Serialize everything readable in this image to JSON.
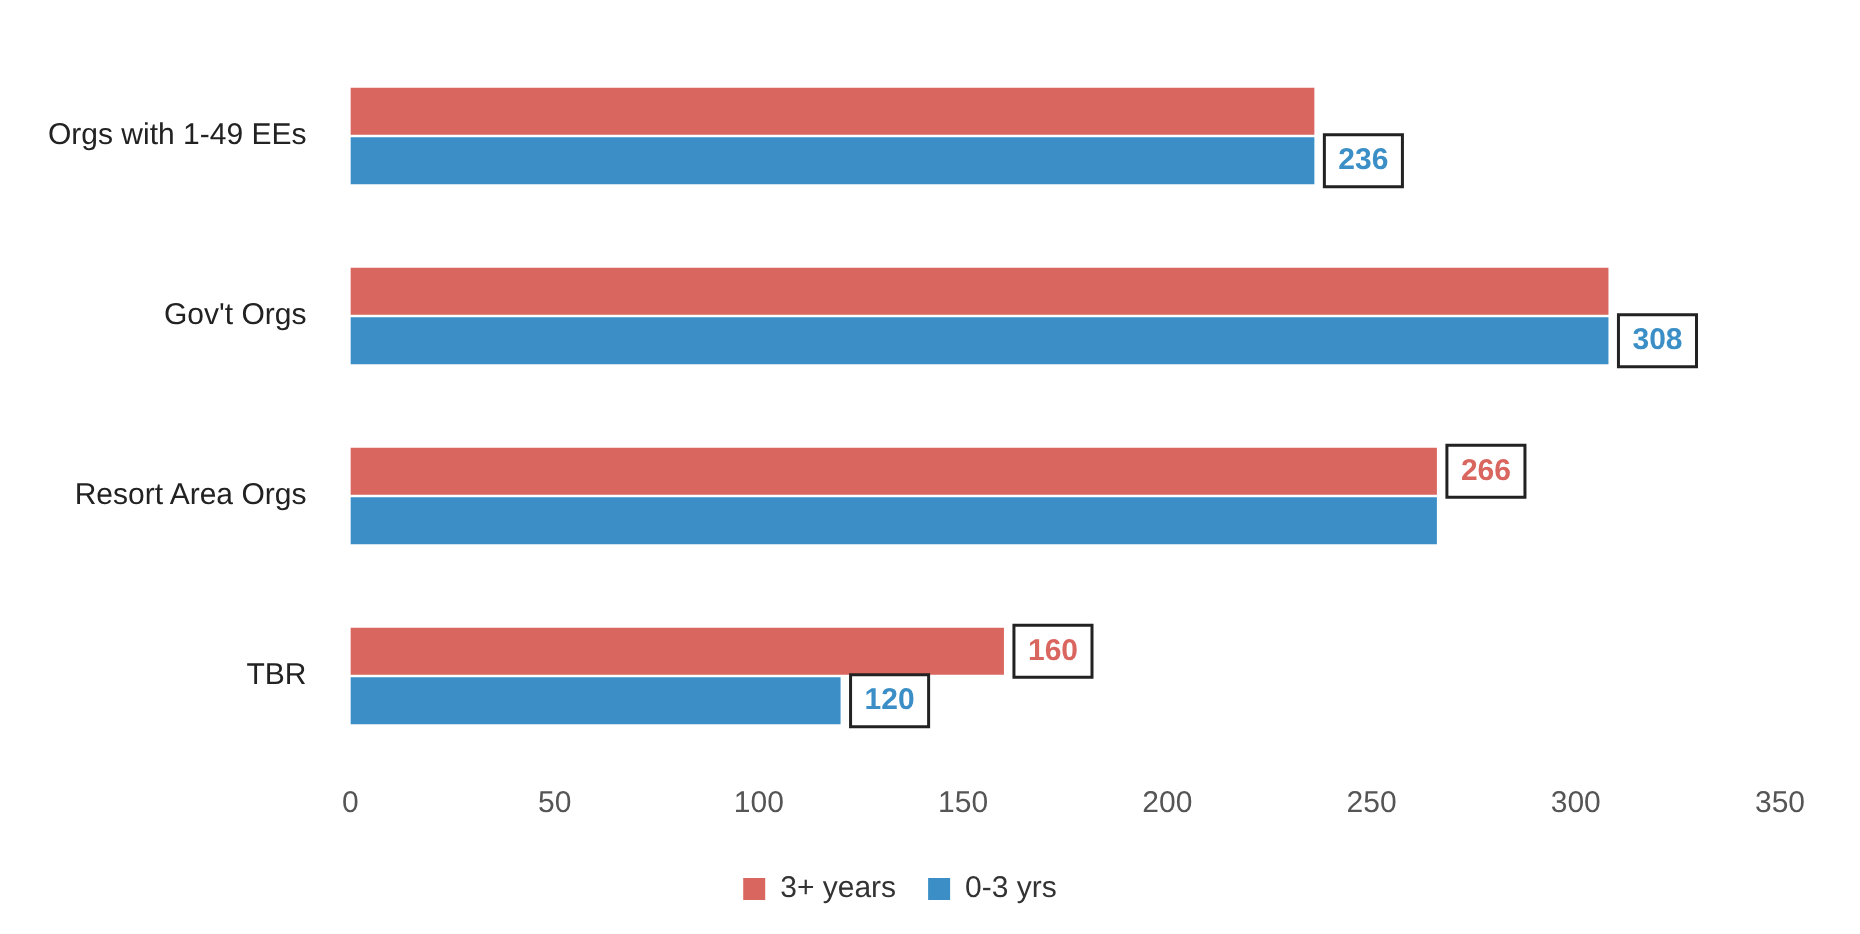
{
  "chart_data": {
    "type": "bar",
    "orientation": "horizontal",
    "categories": [
      "Orgs with 1-49 EEs",
      "Gov't Orgs",
      "Resort Area Orgs",
      "TBR"
    ],
    "series": [
      {
        "name": "3+ years",
        "color": "#d9665f",
        "values": [
          236,
          308,
          266,
          160
        ],
        "value_labels": [
          null,
          null,
          "266",
          "160"
        ]
      },
      {
        "name": "0-3 yrs",
        "color": "#3b8fc6",
        "values": [
          236,
          308,
          266,
          120
        ],
        "value_labels": [
          "236",
          "308",
          null,
          "120"
        ]
      }
    ],
    "xlim": [
      0,
      350
    ],
    "xticks": [
      0,
      50,
      100,
      150,
      200,
      250,
      300,
      350
    ],
    "grid": false,
    "legend": "bottom"
  }
}
